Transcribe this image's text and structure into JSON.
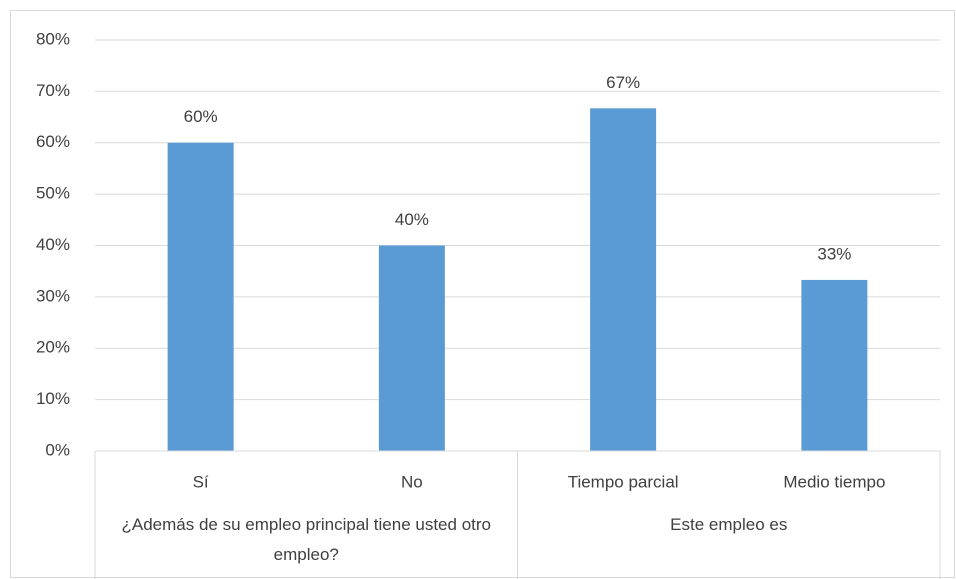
{
  "chart_data": {
    "type": "bar",
    "categories": [
      "Sí",
      "No",
      "Tiempo parcial",
      "Medio tiempo"
    ],
    "groups": [
      {
        "label": "¿Además de su empleo principal tiene usted otro empleo?",
        "count": 2
      },
      {
        "label": "Este empleo es",
        "count": 2
      }
    ],
    "values": [
      60,
      40,
      66.7,
      33.3
    ],
    "value_labels": [
      "60%",
      "40%",
      "67%",
      "33%"
    ],
    "color": "#5b9bd5",
    "ylim": [
      0,
      80
    ],
    "yticks": [
      {
        "value": 0,
        "label": "0%"
      },
      {
        "value": 10,
        "label": "10%"
      },
      {
        "value": 20,
        "label": "20%"
      },
      {
        "value": 30,
        "label": "30%"
      },
      {
        "value": 40,
        "label": "40%"
      },
      {
        "value": 50,
        "label": "50%"
      },
      {
        "value": 60,
        "label": "60%"
      },
      {
        "value": 70,
        "label": "70%"
      },
      {
        "value": 80,
        "label": "80%"
      }
    ],
    "grid": true
  }
}
